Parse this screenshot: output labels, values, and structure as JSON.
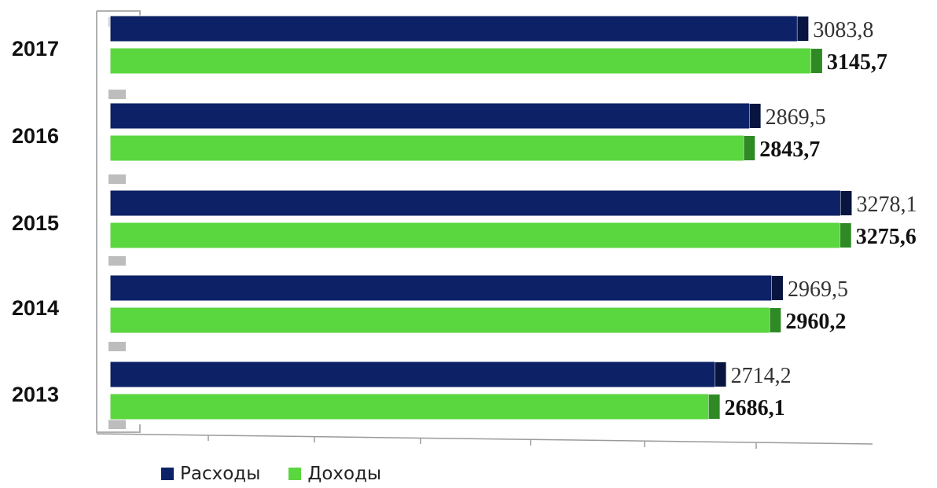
{
  "chart_data": {
    "type": "bar",
    "orientation": "horizontal",
    "categories": [
      "2017",
      "2016",
      "2015",
      "2014",
      "2013"
    ],
    "series": [
      {
        "name": "Расходы",
        "color": "#0d2266",
        "values": [
          3083.8,
          2869.5,
          3278.1,
          2969.5,
          2714.2
        ],
        "labels": [
          "3083,8",
          "2869,5",
          "3278,1",
          "2969,5",
          "2714,2"
        ]
      },
      {
        "name": "Доходы",
        "color": "#5ad63f",
        "values": [
          3145.7,
          2843.7,
          3275.6,
          2960.2,
          2686.1
        ],
        "labels": [
          "3145,7",
          "2843,7",
          "3275,6",
          "2960,2",
          "2686,1"
        ]
      }
    ],
    "xlim": [
      0,
      3500
    ],
    "legend_position": "bottom-left",
    "grid": false
  }
}
